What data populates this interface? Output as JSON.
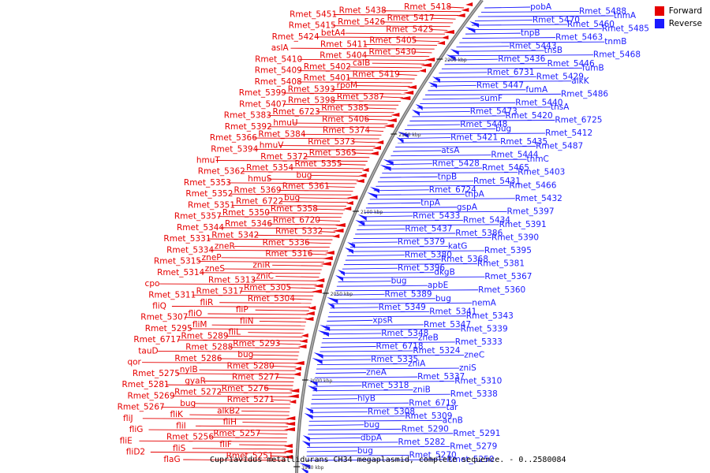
{
  "legend": {
    "forward_label": "Forward",
    "reverse_label": "Reverse",
    "forward_color": "#e60000",
    "reverse_color": "#1a1aff"
  },
  "caption": "Cupriavidus metallidurans CH34 megaplasmid, complete sequence. - 0..2580084",
  "ticks": [
    "2200 kbp",
    "2150 kbp",
    "2100 kbp",
    "2050 kbp",
    "2000 kbp",
    "1950 kbp"
  ],
  "forward_labels": [
    "Rmet_5418",
    "Rmet_5438",
    "Rmet_5451",
    "Rmet_5417",
    "Rmet_5426",
    "Rmet_5415",
    "Rmet_5425",
    "betA4",
    "Rmet_5424",
    "Rmet_5405",
    "Rmet_5411",
    "aslA",
    "Rmet_5430",
    "Rmet_5404",
    "Rmet_5410",
    "calB",
    "Rmet_5402",
    "Rmet_5409",
    "Rmet_5419",
    "Rmet_5401",
    "Rmet_5408",
    "rpoM",
    "Rmet_5393",
    "Rmet_5399",
    "Rmet_5387",
    "Rmet_5398",
    "Rmet_5407",
    "Rmet_5385",
    "Rmet_6723",
    "Rmet_5383",
    "Rmet_5406",
    "hmuU",
    "Rmet_5392",
    "Rmet_5374",
    "Rmet_5384",
    "Rmet_5366",
    "Rmet_5373",
    "hmuV",
    "Rmet_5394",
    "Rmet_5365",
    "Rmet_5372",
    "hmuT",
    "Rmet_5355",
    "Rmet_5354",
    "Rmet_5362",
    "bug",
    "hmuS",
    "Rmet_5353",
    "Rmet_5361",
    "Rmet_5369",
    "Rmet_5352",
    "bug",
    "Rmet_6722",
    "Rmet_5351",
    "Rmet_5358",
    "Rmet_5350",
    "Rmet_5357",
    "Rmet_6720",
    "Rmet_5346",
    "Rmet_5344",
    "Rmet_5332",
    "Rmet_5342",
    "Rmet_5331",
    "Rmet_5336",
    "zneR",
    "Rmet_5334",
    "Rmet_5316",
    "zneP",
    "Rmet_5315",
    "zniR",
    "zneS",
    "Rmet_5314",
    "zniC",
    "Rmet_5313",
    "cpo",
    "Rmet_5305",
    "Rmet_5317",
    "Rmet_5311",
    "Rmet_5304",
    "fliR",
    "fliQ",
    "fliP",
    "fliO",
    "Rmet_5307",
    "fliN",
    "fliM",
    "Rmet_5295",
    "fliL",
    "Rmet_5289",
    "Rmet_6717",
    "Rmet_5293",
    "Rmet_5288",
    "tauD",
    "bug",
    "Rmet_5286",
    "qor",
    "Rmet_5280",
    "nylB",
    "Rmet_5275",
    "Rmet_5277",
    "gyaR",
    "Rmet_5281",
    "Rmet_5276",
    "Rmet_5272",
    "Rmet_5269",
    "Rmet_5271",
    "bug",
    "Rmet_5267",
    "alkB2",
    "fliK",
    "fliJ",
    "fliH",
    "fliI",
    "fliG",
    "Rmet_5257",
    "Rmet_5256",
    "fliE",
    "fliF",
    "fliS",
    "fliD2",
    "Rmet_5251",
    "flaG"
  ],
  "reverse_labels": [
    "pobA",
    "Rmet_5488",
    "tnmA",
    "Rmet_5470",
    "Rmet_5460",
    "Rmet_5485",
    "tnpB",
    "Rmet_5463",
    "tnmB",
    "Rmet_5443",
    "tnsB",
    "Rmet_5468",
    "Rmet_5436",
    "Rmet_5446",
    "fumB",
    "Rmet_6731",
    "Rmet_5429",
    "alkK",
    "Rmet_5447",
    "fumA",
    "Rmet_5486",
    "sumF",
    "Rmet_5440",
    "tnsA",
    "Rmet_5473",
    "Rmet_5420",
    "Rmet_6725",
    "Rmet_5448",
    "bug",
    "Rmet_5412",
    "Rmet_5421",
    "Rmet_5435",
    "Rmet_5487",
    "atsA",
    "Rmet_5444",
    "tnmC",
    "Rmet_5428",
    "Rmet_5465",
    "Rmet_5403",
    "tnpB",
    "Rmet_5431",
    "Rmet_5466",
    "Rmet_6724",
    "tnpA",
    "Rmet_5432",
    "tnpA",
    "gspA",
    "Rmet_5397",
    "Rmet_5433",
    "Rmet_5434",
    "Rmet_5391",
    "Rmet_5437",
    "Rmet_5386",
    "Rmet_5390",
    "Rmet_5379",
    "katG",
    "Rmet_5395",
    "Rmet_5380",
    "Rmet_5368",
    "Rmet_5381",
    "Rmet_5396",
    "dkgB",
    "Rmet_5367",
    "bug",
    "apbE",
    "Rmet_5360",
    "Rmet_5389",
    "bug",
    "nemA",
    "Rmet_5349",
    "Rmet_5341",
    "Rmet_5343",
    "xpsR",
    "Rmet_5347",
    "Rmet_5339",
    "Rmet_5348",
    "zneB",
    "Rmet_5333",
    "Rmet_6718",
    "Rmet_5324",
    "zneC",
    "Rmet_5335",
    "zniA",
    "zniS",
    "zneA",
    "Rmet_5337",
    "Rmet_5310",
    "Rmet_5318",
    "zniB",
    "Rmet_5338",
    "hlyB",
    "Rmet_6719",
    "tar",
    "Rmet_5308",
    "Rmet_5309",
    "acnB",
    "bug",
    "Rmet_5290",
    "Rmet_5291",
    "dbpA",
    "Rmet_5282",
    "Rmet_5279",
    "bug",
    "Rmet_5270",
    "Rmet_5250"
  ]
}
